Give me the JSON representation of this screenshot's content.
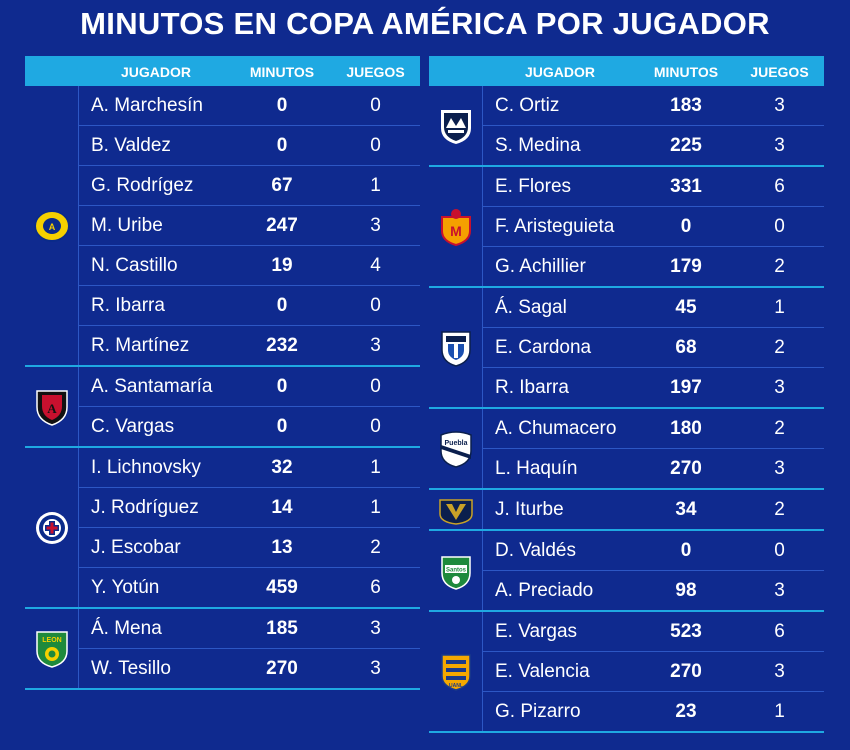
{
  "title": "MINUTOS EN COPA AMÉRICA POR JUGADOR",
  "headers": {
    "jugador": "JUGADOR",
    "minutos": "MINUTOS",
    "juegos": "JUEGOS"
  },
  "left_teams": [
    {
      "team_icon": "club-america-crest-icon",
      "players": [
        {
          "name": "A. Marchesín",
          "minutos": "0",
          "juegos": "0"
        },
        {
          "name": "B. Valdez",
          "minutos": "0",
          "juegos": "0"
        },
        {
          "name": "G. Rodrígez",
          "minutos": "67",
          "juegos": "1"
        },
        {
          "name": "M. Uribe",
          "minutos": "247",
          "juegos": "3"
        },
        {
          "name": "N. Castillo",
          "minutos": "19",
          "juegos": "4"
        },
        {
          "name": "R. Ibarra",
          "minutos": "0",
          "juegos": "0"
        },
        {
          "name": "R. Martínez",
          "minutos": "232",
          "juegos": "3"
        }
      ]
    },
    {
      "team_icon": "atlas-crest-icon",
      "players": [
        {
          "name": "A. Santamaría",
          "minutos": "0",
          "juegos": "0"
        },
        {
          "name": "C. Vargas",
          "minutos": "0",
          "juegos": "0"
        }
      ]
    },
    {
      "team_icon": "cruz-azul-crest-icon",
      "players": [
        {
          "name": "I. Lichnovsky",
          "minutos": "32",
          "juegos": "1"
        },
        {
          "name": "J. Rodríguez",
          "minutos": "14",
          "juegos": "1"
        },
        {
          "name": "J. Escobar",
          "minutos": "13",
          "juegos": "2"
        },
        {
          "name": "Y. Yotún",
          "minutos": "459",
          "juegos": "6"
        }
      ]
    },
    {
      "team_icon": "leon-crest-icon",
      "players": [
        {
          "name": "Á. Mena",
          "minutos": "185",
          "juegos": "3"
        },
        {
          "name": "W. Tesillo",
          "minutos": "270",
          "juegos": "3"
        }
      ]
    }
  ],
  "right_teams": [
    {
      "team_icon": "monterrey-crest-icon",
      "players": [
        {
          "name": "C. Ortiz",
          "minutos": "183",
          "juegos": "3"
        },
        {
          "name": "S. Medina",
          "minutos": "225",
          "juegos": "3"
        }
      ]
    },
    {
      "team_icon": "morelia-crest-icon",
      "players": [
        {
          "name": "E. Flores",
          "minutos": "331",
          "juegos": "6"
        },
        {
          "name": "F. Aristeguieta",
          "minutos": "0",
          "juegos": "0"
        },
        {
          "name": "G. Achillier",
          "minutos": "179",
          "juegos": "2"
        }
      ]
    },
    {
      "team_icon": "pachuca-crest-icon",
      "players": [
        {
          "name": "Á. Sagal",
          "minutos": "45",
          "juegos": "1"
        },
        {
          "name": "E. Cardona",
          "minutos": "68",
          "juegos": "2"
        },
        {
          "name": "R. Ibarra",
          "minutos": "197",
          "juegos": "3"
        }
      ]
    },
    {
      "team_icon": "puebla-crest-icon",
      "players": [
        {
          "name": "A. Chumacero",
          "minutos": "180",
          "juegos": "2"
        },
        {
          "name": "L. Haquín",
          "minutos": "270",
          "juegos": "3"
        }
      ]
    },
    {
      "team_icon": "pumas-crest-icon",
      "players": [
        {
          "name": "J. Iturbe",
          "minutos": "34",
          "juegos": "2"
        }
      ]
    },
    {
      "team_icon": "santos-crest-icon",
      "players": [
        {
          "name": "D. Valdés",
          "minutos": "0",
          "juegos": "0"
        },
        {
          "name": "A. Preciado",
          "minutos": "98",
          "juegos": "3"
        }
      ]
    },
    {
      "team_icon": "tigres-crest-icon",
      "players": [
        {
          "name": "E. Vargas",
          "minutos": "523",
          "juegos": "6"
        },
        {
          "name": "E. Valencia",
          "minutos": "270",
          "juegos": "3"
        },
        {
          "name": "G. Pizarro",
          "minutos": "23",
          "juegos": "1"
        }
      ]
    }
  ]
}
